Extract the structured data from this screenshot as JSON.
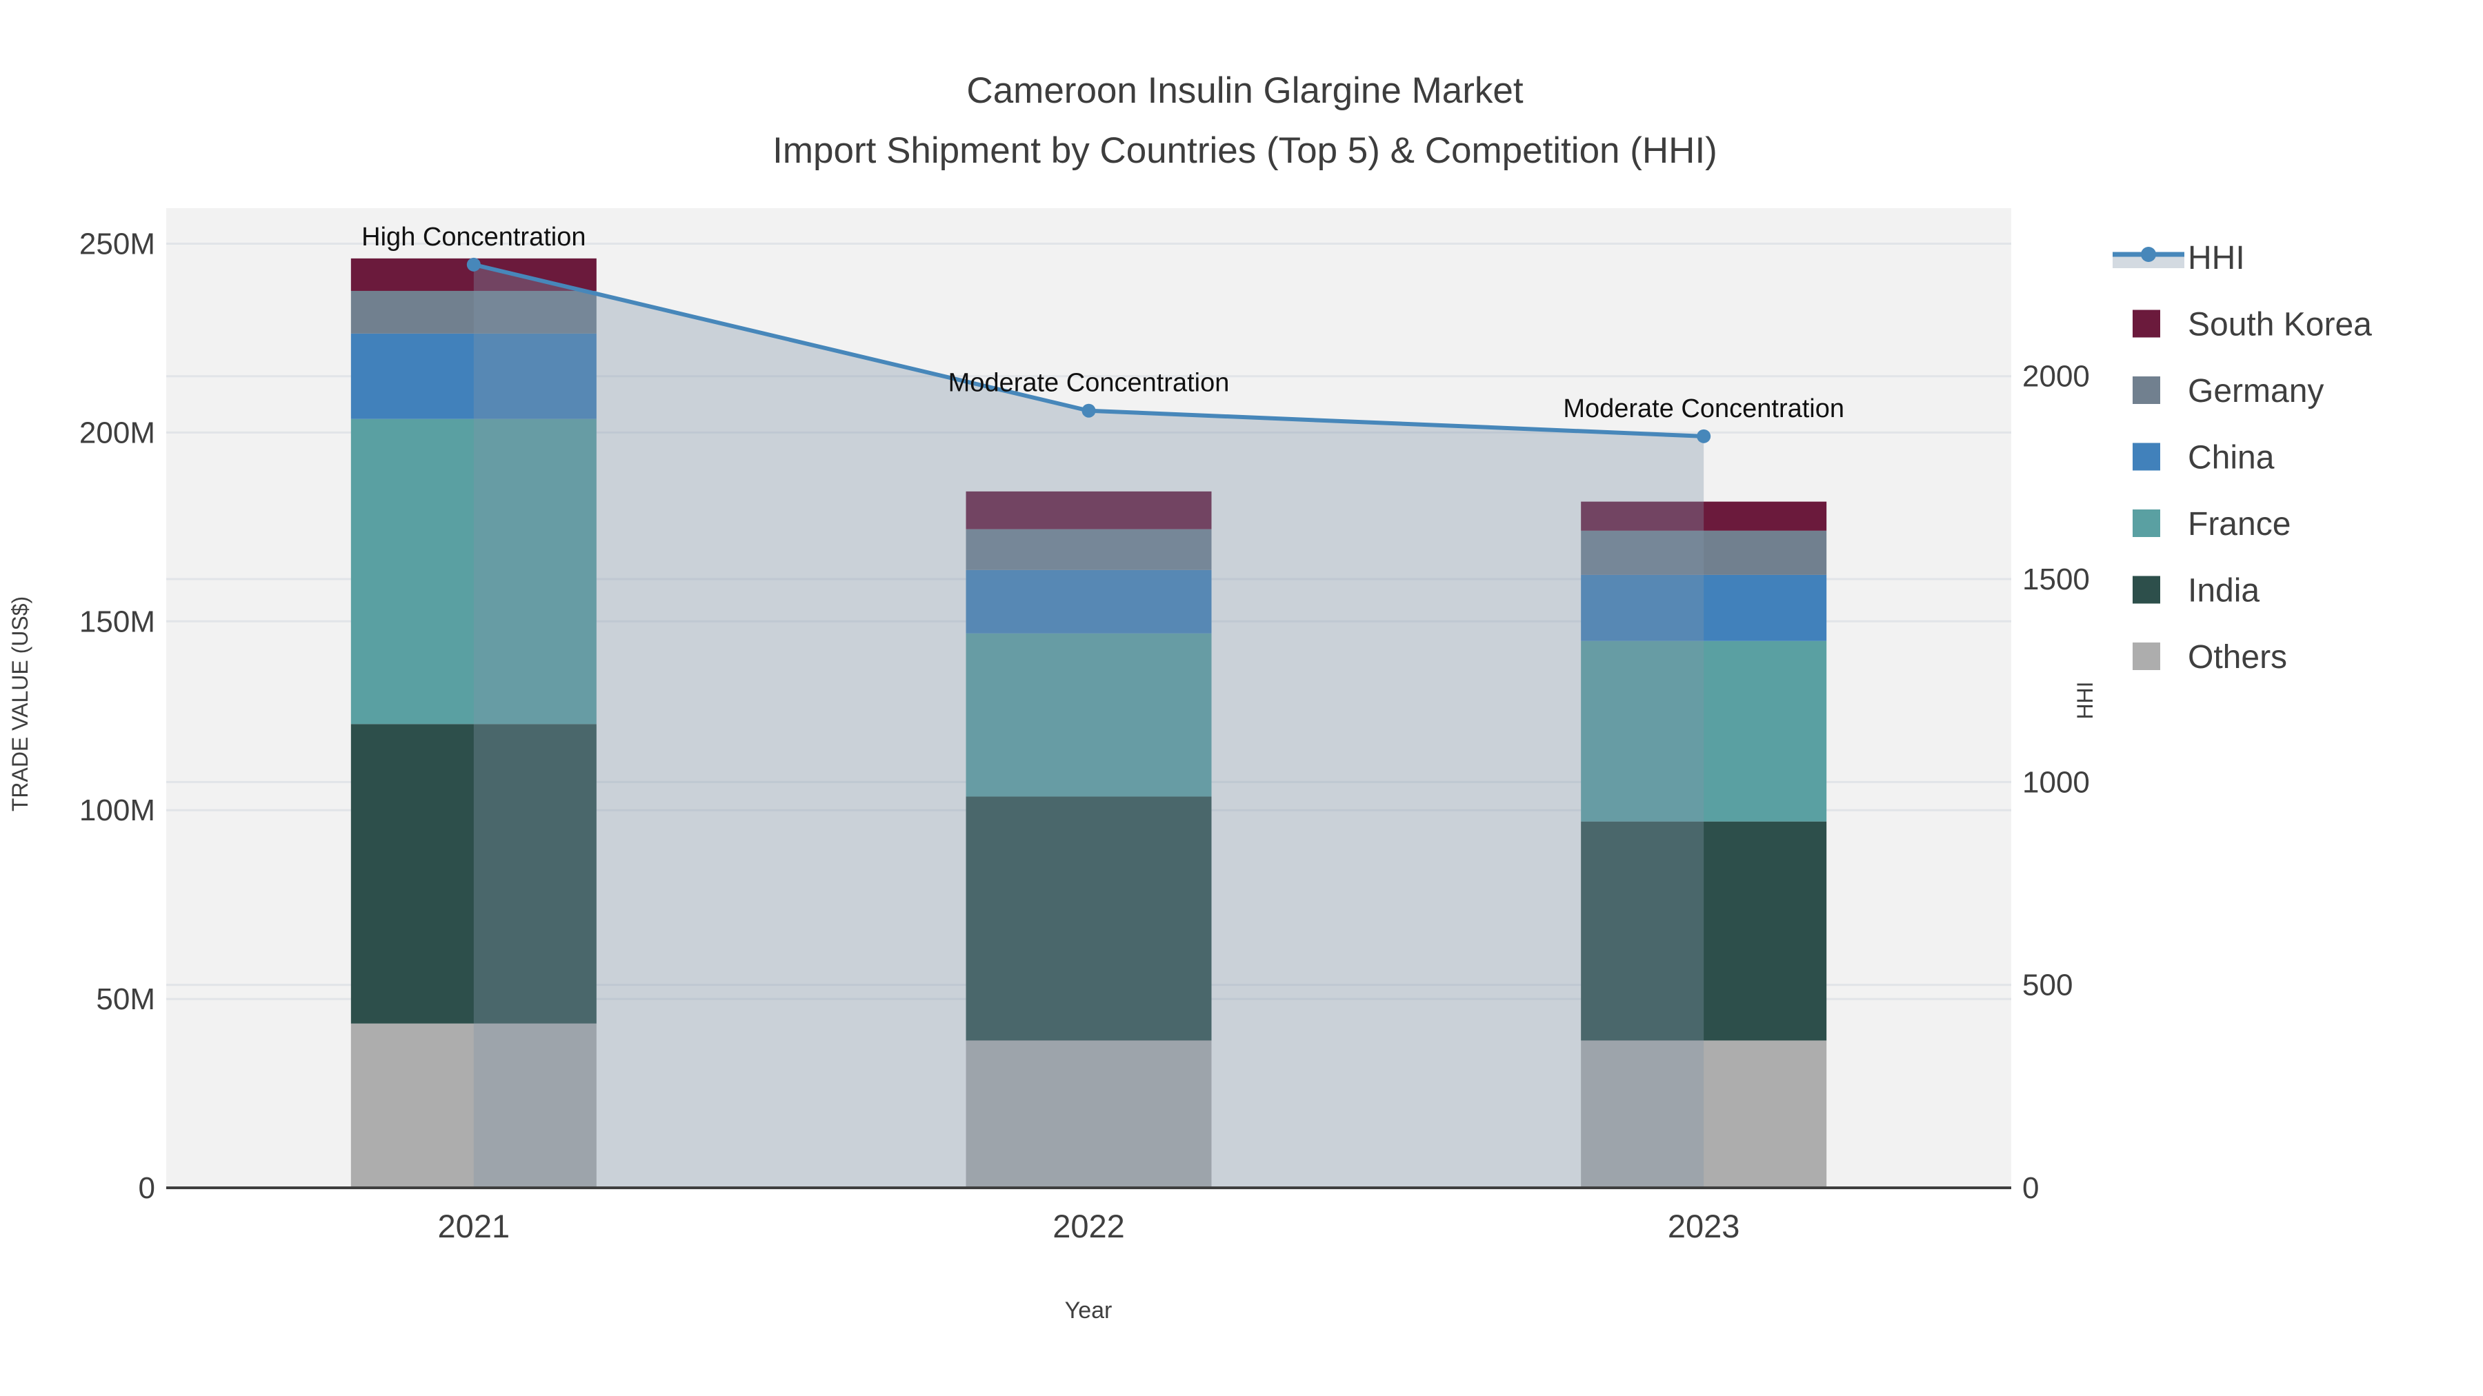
{
  "title": {
    "line1": "Cameroon Insulin Glargine Market",
    "line2": "Import Shipment by Countries (Top 5) & Competition (HHI)"
  },
  "colors": {
    "background": "#ffffff",
    "plot_background": "#f2f2f2",
    "gridline": "#e1e4e8",
    "axis_line": "#3f3f3f",
    "text": "#3f3f3f",
    "annotation_text": "#111111"
  },
  "chart_data": {
    "type": "bar",
    "subtype": "stacked-bars-with-hhi-line-overlay",
    "title": "Cameroon Insulin Glargine Market Import Shipment by Countries (Top 5) & Competition (HHI)",
    "categories": [
      "2021",
      "2022",
      "2023"
    ],
    "xlabel": "Year",
    "ylabel_left": "TRADE VALUE (US$)",
    "ylabel_right": "HHI",
    "ylim_left": [
      0,
      259.4
    ],
    "ylim_right": [
      0,
      2414
    ],
    "unit_left": "US$ millions (values estimated from axis)",
    "yticks_left": [
      {
        "v": 0,
        "label": "0"
      },
      {
        "v": 50,
        "label": "50M"
      },
      {
        "v": 100,
        "label": "100M"
      },
      {
        "v": 150,
        "label": "150M"
      },
      {
        "v": 200,
        "label": "200M"
      },
      {
        "v": 250,
        "label": "250M"
      }
    ],
    "yticks_right": [
      {
        "v": 0,
        "label": "0"
      },
      {
        "v": 500,
        "label": "500"
      },
      {
        "v": 1000,
        "label": "1000"
      },
      {
        "v": 1500,
        "label": "1500"
      },
      {
        "v": 2000,
        "label": "2000"
      }
    ],
    "stack_order": "bottom-to-top",
    "series": [
      {
        "name": "Others",
        "color": "#adadad",
        "values": [
          43.5,
          39.0,
          39.0
        ]
      },
      {
        "name": "India",
        "color": "#2d4f4b",
        "values": [
          79.3,
          64.6,
          58.0
        ]
      },
      {
        "name": "France",
        "color": "#5aa0a2",
        "values": [
          80.8,
          43.2,
          47.8
        ]
      },
      {
        "name": "China",
        "color": "#4181bb",
        "values": [
          22.6,
          16.8,
          17.5
        ]
      },
      {
        "name": "Germany",
        "color": "#71808f",
        "values": [
          11.3,
          10.8,
          11.7
        ]
      },
      {
        "name": "South Korea",
        "color": "#6b1a3c",
        "values": [
          8.6,
          10.0,
          7.7
        ]
      }
    ],
    "line": {
      "name": "HHI",
      "axis": "right",
      "color": "#4787ba",
      "area_color": "rgba(130,148,170,0.35)",
      "values": [
        2275,
        1915,
        1852
      ]
    },
    "annotations": [
      {
        "text": "High Concentration",
        "category": "2021"
      },
      {
        "text": "Moderate Concentration",
        "category": "2022"
      },
      {
        "text": "Moderate Concentration",
        "category": "2023"
      }
    ],
    "legend": {
      "position": "top-right",
      "items": [
        "HHI",
        "South Korea",
        "Germany",
        "China",
        "France",
        "India",
        "Others"
      ]
    },
    "grid": true
  }
}
